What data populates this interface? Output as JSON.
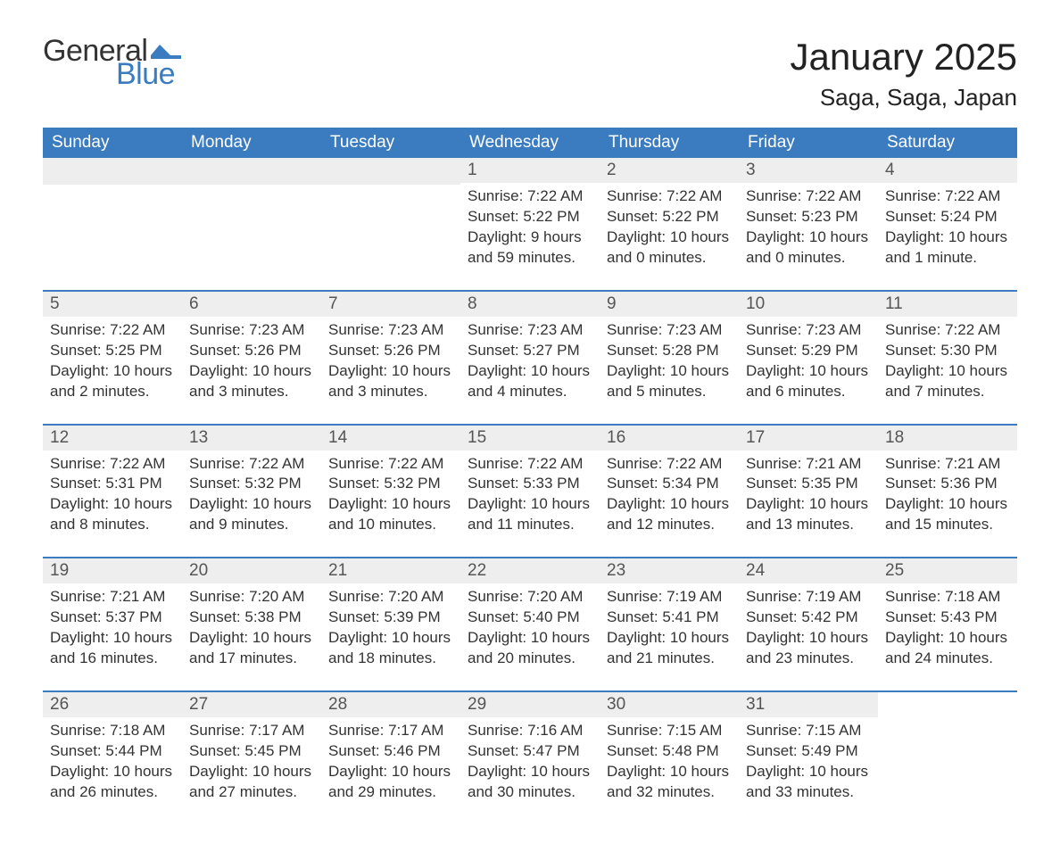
{
  "logo": {
    "general": "General",
    "blue": "Blue",
    "flag_color": "#3b7bbf"
  },
  "title": "January 2025",
  "location": "Saga, Saga, Japan",
  "colors": {
    "header_bg": "#3b7bbf",
    "header_text": "#ffffff",
    "daynum_bg": "#eeeeee",
    "border": "#3b7bbf",
    "text": "#333333",
    "background": "#ffffff"
  },
  "fonts": {
    "title_size_pt": 32,
    "location_size_pt": 20,
    "dow_size_pt": 14,
    "daynum_size_pt": 14,
    "body_size_pt": 13
  },
  "days_of_week": [
    "Sunday",
    "Monday",
    "Tuesday",
    "Wednesday",
    "Thursday",
    "Friday",
    "Saturday"
  ],
  "weeks": [
    [
      null,
      null,
      null,
      {
        "n": "1",
        "sunrise": "Sunrise: 7:22 AM",
        "sunset": "Sunset: 5:22 PM",
        "daylight": "Daylight: 9 hours and 59 minutes."
      },
      {
        "n": "2",
        "sunrise": "Sunrise: 7:22 AM",
        "sunset": "Sunset: 5:22 PM",
        "daylight": "Daylight: 10 hours and 0 minutes."
      },
      {
        "n": "3",
        "sunrise": "Sunrise: 7:22 AM",
        "sunset": "Sunset: 5:23 PM",
        "daylight": "Daylight: 10 hours and 0 minutes."
      },
      {
        "n": "4",
        "sunrise": "Sunrise: 7:22 AM",
        "sunset": "Sunset: 5:24 PM",
        "daylight": "Daylight: 10 hours and 1 minute."
      }
    ],
    [
      {
        "n": "5",
        "sunrise": "Sunrise: 7:22 AM",
        "sunset": "Sunset: 5:25 PM",
        "daylight": "Daylight: 10 hours and 2 minutes."
      },
      {
        "n": "6",
        "sunrise": "Sunrise: 7:23 AM",
        "sunset": "Sunset: 5:26 PM",
        "daylight": "Daylight: 10 hours and 3 minutes."
      },
      {
        "n": "7",
        "sunrise": "Sunrise: 7:23 AM",
        "sunset": "Sunset: 5:26 PM",
        "daylight": "Daylight: 10 hours and 3 minutes."
      },
      {
        "n": "8",
        "sunrise": "Sunrise: 7:23 AM",
        "sunset": "Sunset: 5:27 PM",
        "daylight": "Daylight: 10 hours and 4 minutes."
      },
      {
        "n": "9",
        "sunrise": "Sunrise: 7:23 AM",
        "sunset": "Sunset: 5:28 PM",
        "daylight": "Daylight: 10 hours and 5 minutes."
      },
      {
        "n": "10",
        "sunrise": "Sunrise: 7:23 AM",
        "sunset": "Sunset: 5:29 PM",
        "daylight": "Daylight: 10 hours and 6 minutes."
      },
      {
        "n": "11",
        "sunrise": "Sunrise: 7:22 AM",
        "sunset": "Sunset: 5:30 PM",
        "daylight": "Daylight: 10 hours and 7 minutes."
      }
    ],
    [
      {
        "n": "12",
        "sunrise": "Sunrise: 7:22 AM",
        "sunset": "Sunset: 5:31 PM",
        "daylight": "Daylight: 10 hours and 8 minutes."
      },
      {
        "n": "13",
        "sunrise": "Sunrise: 7:22 AM",
        "sunset": "Sunset: 5:32 PM",
        "daylight": "Daylight: 10 hours and 9 minutes."
      },
      {
        "n": "14",
        "sunrise": "Sunrise: 7:22 AM",
        "sunset": "Sunset: 5:32 PM",
        "daylight": "Daylight: 10 hours and 10 minutes."
      },
      {
        "n": "15",
        "sunrise": "Sunrise: 7:22 AM",
        "sunset": "Sunset: 5:33 PM",
        "daylight": "Daylight: 10 hours and 11 minutes."
      },
      {
        "n": "16",
        "sunrise": "Sunrise: 7:22 AM",
        "sunset": "Sunset: 5:34 PM",
        "daylight": "Daylight: 10 hours and 12 minutes."
      },
      {
        "n": "17",
        "sunrise": "Sunrise: 7:21 AM",
        "sunset": "Sunset: 5:35 PM",
        "daylight": "Daylight: 10 hours and 13 minutes."
      },
      {
        "n": "18",
        "sunrise": "Sunrise: 7:21 AM",
        "sunset": "Sunset: 5:36 PM",
        "daylight": "Daylight: 10 hours and 15 minutes."
      }
    ],
    [
      {
        "n": "19",
        "sunrise": "Sunrise: 7:21 AM",
        "sunset": "Sunset: 5:37 PM",
        "daylight": "Daylight: 10 hours and 16 minutes."
      },
      {
        "n": "20",
        "sunrise": "Sunrise: 7:20 AM",
        "sunset": "Sunset: 5:38 PM",
        "daylight": "Daylight: 10 hours and 17 minutes."
      },
      {
        "n": "21",
        "sunrise": "Sunrise: 7:20 AM",
        "sunset": "Sunset: 5:39 PM",
        "daylight": "Daylight: 10 hours and 18 minutes."
      },
      {
        "n": "22",
        "sunrise": "Sunrise: 7:20 AM",
        "sunset": "Sunset: 5:40 PM",
        "daylight": "Daylight: 10 hours and 20 minutes."
      },
      {
        "n": "23",
        "sunrise": "Sunrise: 7:19 AM",
        "sunset": "Sunset: 5:41 PM",
        "daylight": "Daylight: 10 hours and 21 minutes."
      },
      {
        "n": "24",
        "sunrise": "Sunrise: 7:19 AM",
        "sunset": "Sunset: 5:42 PM",
        "daylight": "Daylight: 10 hours and 23 minutes."
      },
      {
        "n": "25",
        "sunrise": "Sunrise: 7:18 AM",
        "sunset": "Sunset: 5:43 PM",
        "daylight": "Daylight: 10 hours and 24 minutes."
      }
    ],
    [
      {
        "n": "26",
        "sunrise": "Sunrise: 7:18 AM",
        "sunset": "Sunset: 5:44 PM",
        "daylight": "Daylight: 10 hours and 26 minutes."
      },
      {
        "n": "27",
        "sunrise": "Sunrise: 7:17 AM",
        "sunset": "Sunset: 5:45 PM",
        "daylight": "Daylight: 10 hours and 27 minutes."
      },
      {
        "n": "28",
        "sunrise": "Sunrise: 7:17 AM",
        "sunset": "Sunset: 5:46 PM",
        "daylight": "Daylight: 10 hours and 29 minutes."
      },
      {
        "n": "29",
        "sunrise": "Sunrise: 7:16 AM",
        "sunset": "Sunset: 5:47 PM",
        "daylight": "Daylight: 10 hours and 30 minutes."
      },
      {
        "n": "30",
        "sunrise": "Sunrise: 7:15 AM",
        "sunset": "Sunset: 5:48 PM",
        "daylight": "Daylight: 10 hours and 32 minutes."
      },
      {
        "n": "31",
        "sunrise": "Sunrise: 7:15 AM",
        "sunset": "Sunset: 5:49 PM",
        "daylight": "Daylight: 10 hours and 33 minutes."
      },
      null
    ]
  ]
}
